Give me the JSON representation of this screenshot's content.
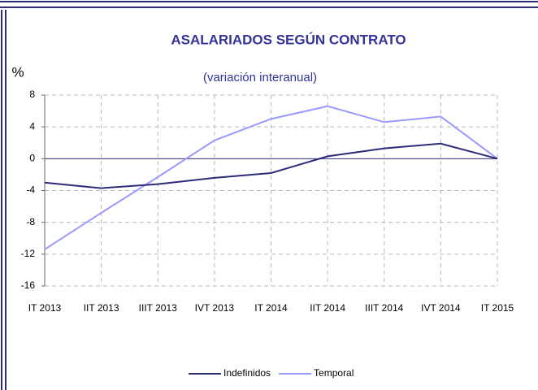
{
  "chart_data": {
    "type": "line",
    "title": "ASALARIADOS SEGÚN CONTRATO",
    "subtitle": "(variación interanual)",
    "y_label": "%",
    "categories": [
      "IT 2013",
      "IIT 2013",
      "IIIT 2013",
      "IVT 2013",
      "IT 2014",
      "IIT 2014",
      "IIIT 2014",
      "IVT 2014",
      "IT 2015"
    ],
    "series": [
      {
        "name": "Indefinidos",
        "color": "#2e2a7a",
        "values": [
          -3.0,
          -3.7,
          -3.2,
          -2.4,
          -1.8,
          0.3,
          1.3,
          1.9,
          0
        ]
      },
      {
        "name": "Temporal",
        "color": "#9999ff",
        "values": [
          -11.4,
          -6.8,
          -2.3,
          2.3,
          5.0,
          6.6,
          4.6,
          5.3,
          0
        ]
      }
    ],
    "ylim": [
      -16,
      8
    ],
    "yticks": [
      -16,
      -12,
      -8,
      -4,
      0,
      4,
      8
    ],
    "grid": true,
    "legend": "bottom"
  }
}
